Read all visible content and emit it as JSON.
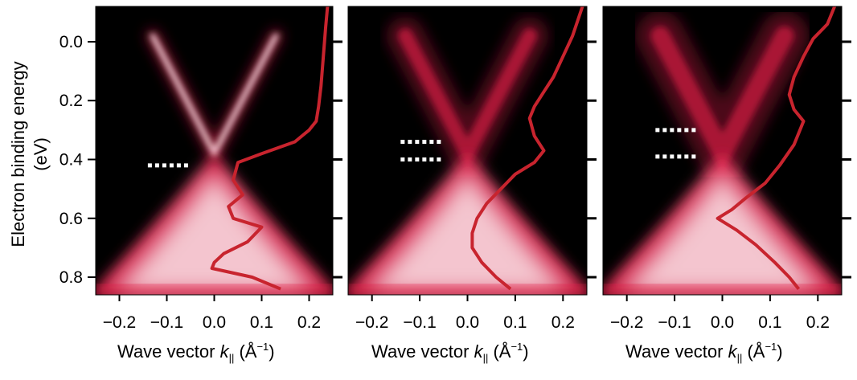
{
  "figure": {
    "ylabel": "Electron binding energy (eV)",
    "xlabel_prefix": "Wave vector ",
    "xlabel_var": "k",
    "xlabel_sub": "||",
    "xlabel_unit_open": " (Å",
    "xlabel_unit_sup": "−1",
    "xlabel_unit_close": ")"
  },
  "colors": {
    "background": "#000000",
    "band": "#e8204a",
    "band_core": "#f6cfd6",
    "edc_curve": "#c8242e",
    "markers": "#ffffff"
  },
  "chart_data": [
    {
      "type": "heatmap",
      "xlabel": "Wave vector k|| (Å−1)",
      "ylabel": "Electron binding energy (eV)",
      "xlim": [
        -0.25,
        0.25
      ],
      "ylim": [
        -0.12,
        0.86
      ],
      "y_inverted": true,
      "xticks": [
        -0.2,
        -0.1,
        0.0,
        0.1,
        0.2
      ],
      "xtick_labels": [
        "−0.2",
        "−0.1",
        "0.0",
        "0.1",
        "0.2"
      ],
      "yticks": [
        0.0,
        0.2,
        0.4,
        0.6,
        0.8
      ],
      "ytick_labels": [
        "0.0",
        "0.2",
        "0.4",
        "0.6",
        "0.8"
      ],
      "dirac_point_eV": 0.38,
      "gap_marker_energies": [
        0.42
      ],
      "edc_curve": {
        "x": [
          0.24,
          0.235,
          0.23,
          0.225,
          0.22,
          0.215,
          0.2,
          0.17,
          0.1,
          0.05,
          0.04,
          0.06,
          0.03,
          0.04,
          0.1,
          0.07,
          0.02,
          0.0,
          -0.005,
          0.08,
          0.14
        ],
        "y": [
          -0.14,
          -0.05,
          0.05,
          0.15,
          0.22,
          0.27,
          0.3,
          0.34,
          0.38,
          0.41,
          0.47,
          0.52,
          0.56,
          0.6,
          0.63,
          0.68,
          0.72,
          0.75,
          0.77,
          0.8,
          0.84
        ]
      }
    },
    {
      "type": "heatmap",
      "xlabel": "Wave vector k|| (Å−1)",
      "xlim": [
        -0.25,
        0.25
      ],
      "ylim": [
        -0.12,
        0.86
      ],
      "y_inverted": true,
      "xticks": [
        -0.2,
        -0.1,
        0.0,
        0.1,
        0.2
      ],
      "xtick_labels": [
        "−0.2",
        "−0.1",
        "0.0",
        "0.1",
        "0.2"
      ],
      "yticks": [
        0.0,
        0.2,
        0.4,
        0.6,
        0.8
      ],
      "dirac_point_eV": 0.38,
      "gap_marker_energies": [
        0.34,
        0.4
      ],
      "edc_curve": {
        "x": [
          0.245,
          0.22,
          0.2,
          0.18,
          0.16,
          0.14,
          0.13,
          0.14,
          0.16,
          0.14,
          0.12,
          0.1,
          0.07,
          0.04,
          0.02,
          0.01,
          0.01,
          0.03,
          0.06,
          0.09
        ],
        "y": [
          -0.14,
          -0.02,
          0.05,
          0.12,
          0.17,
          0.22,
          0.26,
          0.32,
          0.37,
          0.41,
          0.43,
          0.45,
          0.5,
          0.55,
          0.6,
          0.65,
          0.7,
          0.75,
          0.8,
          0.84
        ]
      }
    },
    {
      "type": "heatmap",
      "xlabel": "Wave vector k|| (Å−1)",
      "xlim": [
        -0.25,
        0.25
      ],
      "ylim": [
        -0.12,
        0.86
      ],
      "y_inverted": true,
      "xticks": [
        -0.2,
        -0.1,
        0.0,
        0.1,
        0.2
      ],
      "xtick_labels": [
        "−0.2",
        "−0.1",
        "0.0",
        "0.1",
        "0.2"
      ],
      "yticks": [
        0.0,
        0.2,
        0.4,
        0.6,
        0.8
      ],
      "dirac_point_eV": 0.38,
      "gap_marker_energies": [
        0.3,
        0.39
      ],
      "edc_curve": {
        "x": [
          0.24,
          0.22,
          0.19,
          0.17,
          0.15,
          0.14,
          0.15,
          0.17,
          0.15,
          0.12,
          0.09,
          0.05,
          0.02,
          -0.01,
          0.03,
          0.07,
          0.11,
          0.14,
          0.16
        ],
        "y": [
          -0.14,
          -0.06,
          -0.01,
          0.05,
          0.12,
          0.18,
          0.23,
          0.27,
          0.35,
          0.42,
          0.48,
          0.53,
          0.57,
          0.6,
          0.64,
          0.69,
          0.75,
          0.8,
          0.84
        ]
      }
    }
  ]
}
